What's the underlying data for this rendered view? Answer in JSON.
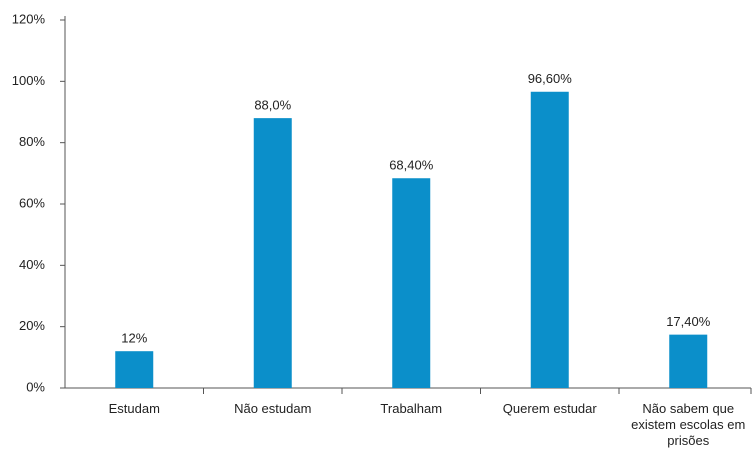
{
  "chart_data": {
    "type": "bar",
    "categories": [
      "Estudam",
      "Não estudam",
      "Trabalham",
      "Querem estudar",
      "Não sabem que existem escolas em prisões"
    ],
    "values": [
      12,
      88,
      68.4,
      96.6,
      17.4
    ],
    "value_labels": [
      "12%",
      "88,0%",
      "68,40%",
      "96,60%",
      "17,40%"
    ],
    "color": "#0b8fca",
    "ylim": [
      0,
      120
    ],
    "yticks": [
      {
        "value": 0,
        "label": "0%"
      },
      {
        "value": 20,
        "label": "20%"
      },
      {
        "value": 40,
        "label": "40%"
      },
      {
        "value": 60,
        "label": "60%"
      },
      {
        "value": 80,
        "label": "80%"
      },
      {
        "value": 100,
        "label": "100%"
      },
      {
        "value": 120,
        "label": "120%"
      }
    ],
    "grid": false
  }
}
